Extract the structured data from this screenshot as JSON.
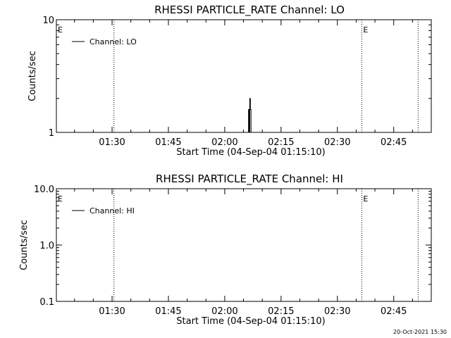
{
  "chart_data": [
    {
      "type": "line",
      "title": "RHESSI PARTICLE_RATE Channel: LO",
      "xlabel": "Start Time (04-Sep-04 01:15:10)",
      "ylabel": "Counts/sec",
      "y_scale": "log",
      "ylim": [
        1,
        10
      ],
      "y_ticks": [
        1,
        10
      ],
      "y_tick_labels": [
        "1",
        "10"
      ],
      "xlim": [
        "01:15:10",
        "02:55:00"
      ],
      "x_ticks": [
        "01:30",
        "01:45",
        "02:00",
        "02:15",
        "02:30",
        "02:45"
      ],
      "legend": {
        "position": "top-left"
      },
      "series": [
        {
          "name": "Channel: LO",
          "x": [
            "02:06:10",
            "02:06:20",
            "02:06:30",
            "02:06:40",
            "02:06:50",
            "02:07:00",
            "02:07:10",
            "02:07:20",
            "02:07:30"
          ],
          "y": [
            1,
            1.6,
            1,
            2.0,
            1.6,
            1,
            1,
            1,
            1
          ]
        }
      ],
      "vlines": [
        {
          "x": "01:30:30",
          "flag": ""
        },
        {
          "x": "02:36:30",
          "flag": "E"
        },
        {
          "x": "02:51:30",
          "flag": ""
        }
      ],
      "start_flag": "E"
    },
    {
      "type": "line",
      "title": "RHESSI PARTICLE_RATE Channel: HI",
      "xlabel": "Start Time (04-Sep-04 01:15:10)",
      "ylabel": "Counts/sec",
      "y_scale": "log",
      "ylim": [
        0.1,
        10
      ],
      "y_ticks": [
        0.1,
        1,
        10
      ],
      "y_tick_labels": [
        "0.1",
        "1.0",
        "10.0"
      ],
      "xlim": [
        "01:15:10",
        "02:55:00"
      ],
      "x_ticks": [
        "01:30",
        "01:45",
        "02:00",
        "02:15",
        "02:30",
        "02:45"
      ],
      "legend": {
        "position": "top-left"
      },
      "series": [
        {
          "name": "Channel: HI",
          "x": [],
          "y": []
        }
      ],
      "vlines": [
        {
          "x": "01:30:30",
          "flag": ""
        },
        {
          "x": "02:36:30",
          "flag": "E"
        },
        {
          "x": "02:51:30",
          "flag": ""
        }
      ],
      "start_flag": "E"
    }
  ],
  "footer": {
    "timestamp": "20-Oct-2021 15:30"
  }
}
